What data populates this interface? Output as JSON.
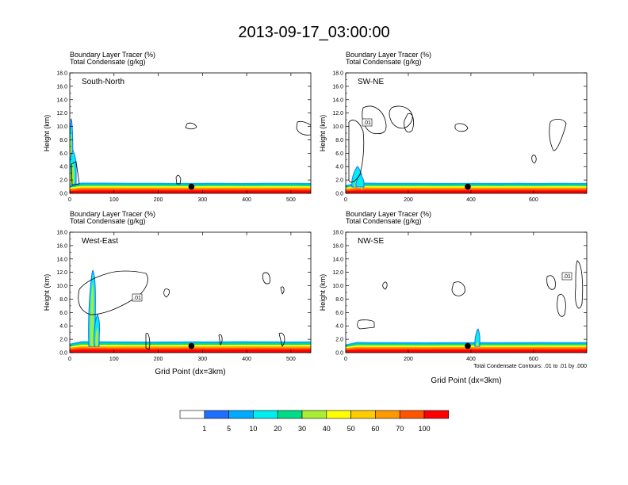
{
  "title": "2013-09-17_03:00:00",
  "colors": {
    "levels": [
      "#ffffff",
      "#1e6eff",
      "#00aaff",
      "#00eeee",
      "#00dd88",
      "#00cc00",
      "#aaee33",
      "#ffff00",
      "#ffcc00",
      "#ff9900",
      "#ff5500",
      "#ff0000"
    ]
  },
  "chart_data": [
    {
      "type": "contour",
      "panel_label": "South-North",
      "header_line1": "Boundary Layer Tracer    (%)",
      "header_line2": "Total Condensate    (g/kg)",
      "ylabel": "Height (km)",
      "xlabel": "",
      "xlim": [
        0,
        545
      ],
      "ylim": [
        0,
        18
      ],
      "xticks": [
        0,
        100,
        200,
        300,
        400,
        500
      ],
      "yticks": [
        "0.0",
        "2.0",
        "4.0",
        "6.0",
        "8.0",
        "10.0",
        "12.0",
        "14.0",
        "16.0",
        "18.0"
      ],
      "marker_x": 275,
      "contour_label": "",
      "footer_note": ""
    },
    {
      "type": "contour",
      "panel_label": "SW-NE",
      "header_line1": "Boundary Layer Tracer    (%)",
      "header_line2": "Total Condensate    (g/kg)",
      "ylabel": "Height (km)",
      "xlabel": "",
      "xlim": [
        0,
        770
      ],
      "ylim": [
        0,
        18
      ],
      "xticks": [
        0,
        200,
        400,
        600
      ],
      "yticks": [
        "0.0",
        "2.0",
        "4.0",
        "6.0",
        "8.0",
        "10.0",
        "12.0",
        "14.0",
        "16.0",
        "18.0"
      ],
      "marker_x": 390,
      "contour_label": ".01",
      "footer_note": ""
    },
    {
      "type": "contour",
      "panel_label": "West-East",
      "header_line1": "Boundary Layer Tracer    (%)",
      "header_line2": "Total Condensate    (g/kg)",
      "ylabel": "Height (km)",
      "xlabel": "Grid Point (dx=3km)",
      "xlim": [
        0,
        545
      ],
      "ylim": [
        0,
        18
      ],
      "xticks": [
        0,
        100,
        200,
        300,
        400,
        500
      ],
      "yticks": [
        "0.0",
        "2.0",
        "4.0",
        "6.0",
        "8.0",
        "10.0",
        "12.0",
        "14.0",
        "16.0",
        "18.0"
      ],
      "marker_x": 275,
      "contour_label": ".01",
      "footer_note": ""
    },
    {
      "type": "contour",
      "panel_label": "NW-SE",
      "header_line1": "Boundary Layer Tracer    (%)",
      "header_line2": "Total Condensate    (g/kg)",
      "ylabel": "Height (km)",
      "xlabel": "Grid Point (dx=3km)",
      "xlim": [
        0,
        770
      ],
      "ylim": [
        0,
        18
      ],
      "xticks": [
        0,
        200,
        400,
        600
      ],
      "yticks": [
        "0.0",
        "2.0",
        "4.0",
        "6.0",
        "8.0",
        "10.0",
        "12.0",
        "14.0",
        "16.0",
        "18.0"
      ],
      "marker_x": 390,
      "contour_label": ".01",
      "footer_note": "Total Condensate Contours: .01 to .01 by .000"
    }
  ],
  "colorbar": {
    "labels": [
      "1",
      "5",
      "10",
      "20",
      "30",
      "40",
      "50",
      "60",
      "70",
      "100"
    ]
  }
}
